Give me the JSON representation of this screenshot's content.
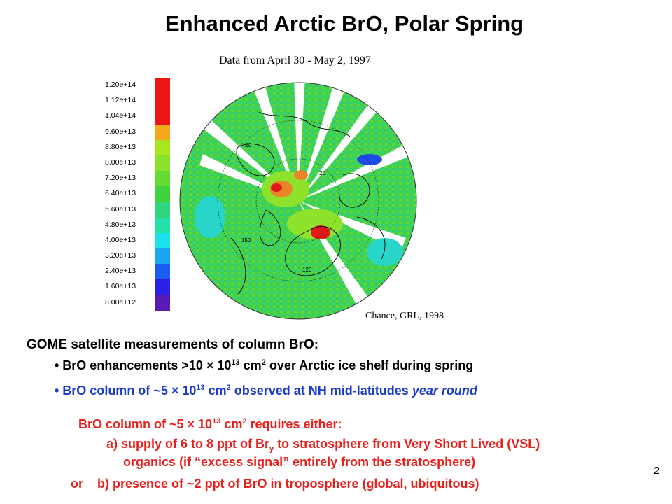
{
  "title": "Enhanced Arctic BrO, Polar Spring",
  "subtitle": "Data from April 30 - May 2, 1997",
  "citation": "Chance, GRL, 1998",
  "color_scale": {
    "labels": [
      "1.20e+14",
      "1.12e+14",
      "1.04e+14",
      "9.60e+13",
      "8.80e+13",
      "8.00e+13",
      "7.20e+13",
      "6.40e+13",
      "5.60e+13",
      "4.80e+13",
      "4.00e+13",
      "3.20e+13",
      "2.40e+13",
      "1.60e+13",
      "8.00e+12"
    ],
    "colors": [
      "#ee1414",
      "#ee1414",
      "#ee1414",
      "#f6a81c",
      "#a8e61e",
      "#8ae22a",
      "#62dd32",
      "#3ed23c",
      "#30d67e",
      "#22e2a8",
      "#1ce2ee",
      "#1aa6ee",
      "#1a5cf2",
      "#2a20e6",
      "#5a1ab6"
    ]
  },
  "map_colors": {
    "ocean_green": "#3fcf4a",
    "lime": "#8fe22c",
    "cyan": "#27d6c8",
    "red": "#e01a18",
    "orange": "#e8842a",
    "blue": "#1e4ae8"
  },
  "map_labels": [
    "20",
    "20",
    "150",
    "120"
  ],
  "text": {
    "heading": "GOME satellite measurements of column BrO:",
    "bullet1_pre": "• BrO enhancements >10 × 10",
    "bullet1_sup": "13",
    "bullet1_mid": " cm",
    "bullet1_sup2": "2",
    "bullet1_post": " over Arctic ice shelf  during spring",
    "bullet2_pre": "• BrO column of ~5 × 10",
    "bullet2_sup": "13",
    "bullet2_mid": " cm",
    "bullet2_sup2": "2",
    "bullet2_post": " observed at NH mid-latitudes ",
    "bullet2_italic": "year round",
    "req_pre": "BrO column of ~5 × 10",
    "req_sup": "13",
    "req_mid": " cm",
    "req_sup2": "2",
    "req_post": " requires either:",
    "a1_pre": "a) supply of 6 to 8 ppt of Br",
    "a1_sub": "y",
    "a1_post": " to stratosphere from Very Short Lived (VSL)",
    "a2": "organics (if “excess signal” entirely from the stratosphere)",
    "b_or": "or",
    "b": "b) presence of ~2 ppt of BrO in troposphere (global, ubiquitous)",
    "page_number": "2"
  }
}
